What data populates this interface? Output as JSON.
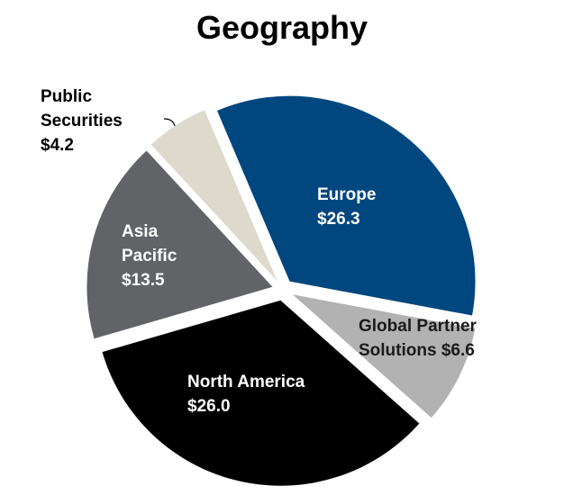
{
  "chart_data": {
    "type": "pie",
    "title": "Geography",
    "categories": [
      "Europe",
      "Global Partner Solutions",
      "North America",
      "Asia Pacific",
      "Public Securities"
    ],
    "values": [
      26.3,
      6.6,
      26.0,
      13.5,
      4.2
    ],
    "value_labels": [
      "$26.3",
      "$6.6",
      "$26.0",
      "$13.5",
      "$4.2"
    ],
    "colors": [
      "#00467f",
      "#b2b2b2",
      "#000000",
      "#626366",
      "#ddd9cc"
    ]
  }
}
